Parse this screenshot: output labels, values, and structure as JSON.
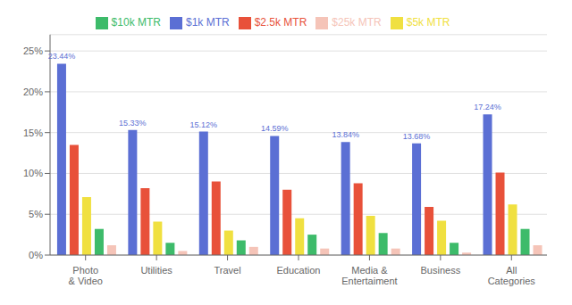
{
  "chart_data": {
    "type": "bar",
    "categories": [
      "Photo\n& Video",
      "Utilities",
      "Travel",
      "Education",
      "Media &\nEntertaiment",
      "Business",
      "All\nCategories"
    ],
    "series": [
      {
        "name": "$1k MTR",
        "color": "#5B6FD4",
        "values": [
          23.44,
          15.33,
          15.12,
          14.59,
          13.84,
          13.68,
          17.24
        ],
        "value_labels": [
          "23.44%",
          "15.33%",
          "15.12%",
          "14.59%",
          "13.84%",
          "13.68%",
          "17.24%"
        ]
      },
      {
        "name": "$2.5k MTR",
        "color": "#E8513A",
        "values": [
          13.5,
          8.2,
          9.0,
          8.0,
          8.8,
          5.9,
          10.1
        ]
      },
      {
        "name": "$5k MTR",
        "color": "#F0E040",
        "values": [
          7.1,
          4.1,
          3.0,
          4.5,
          4.8,
          4.2,
          6.2
        ]
      },
      {
        "name": "$10k MTR",
        "color": "#3DBB6A",
        "values": [
          3.2,
          1.5,
          1.8,
          2.5,
          2.7,
          1.5,
          3.2
        ]
      },
      {
        "name": "$25k MTR",
        "color": "#F5C4B8",
        "values": [
          1.2,
          0.5,
          1.0,
          0.8,
          0.8,
          0.3,
          1.2
        ]
      }
    ],
    "ylim": [
      0,
      27
    ],
    "yticks": [
      {
        "value": 0,
        "label": "0%"
      },
      {
        "value": 5,
        "label": "5%"
      },
      {
        "value": 10,
        "label": "10%"
      },
      {
        "value": 15,
        "label": "15%"
      },
      {
        "value": 20,
        "label": "20%"
      },
      {
        "value": 25,
        "label": "25%"
      }
    ],
    "grid": true,
    "legend": "top"
  }
}
